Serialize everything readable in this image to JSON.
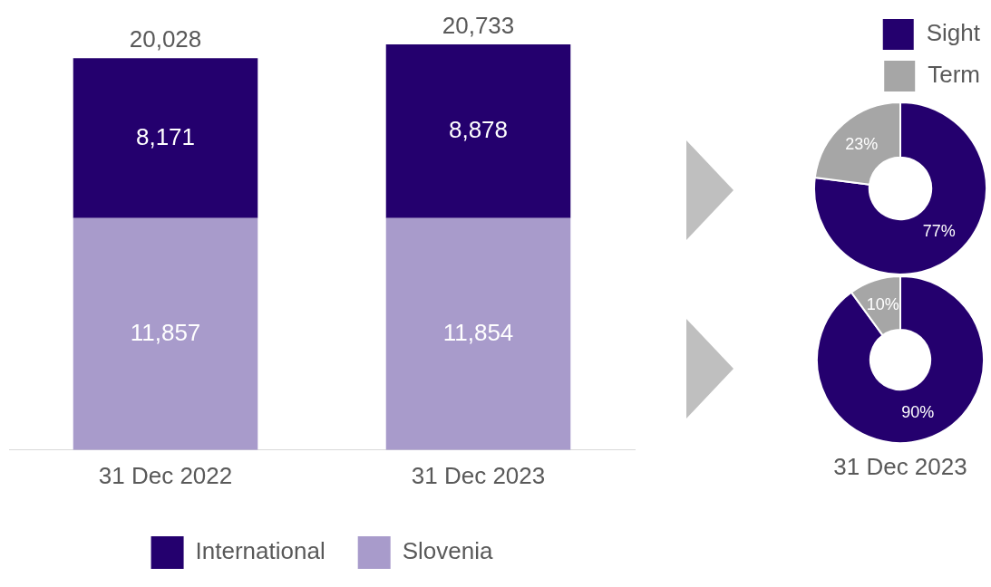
{
  "chart_data": [
    {
      "type": "bar",
      "categories": [
        "31 Dec 2022",
        "31 Dec 2023"
      ],
      "stacked": true,
      "totals": [
        "20,028",
        "20,733"
      ],
      "legend": "bottom",
      "grid": false,
      "tick_labels": "x",
      "series": [
        {
          "name": "Slovenia",
          "color": "#a89bcb",
          "values": [
            11857,
            11854
          ],
          "value_labels": [
            "11,857",
            "11,854"
          ]
        },
        {
          "name": "International",
          "color": "#24006e",
          "values": [
            8171,
            8878
          ],
          "value_labels": [
            "8,171",
            "8,878"
          ]
        }
      ]
    },
    {
      "type": "donut",
      "categories": [
        "Sight",
        "Term"
      ],
      "values": [
        77,
        23
      ],
      "colors": [
        "#24006e",
        "#a6a6a6"
      ],
      "value_labels": [
        "77%",
        "23%"
      ],
      "legend": "top right"
    },
    {
      "type": "donut",
      "categories": [
        null,
        null
      ],
      "values": [
        90,
        10
      ],
      "colors": [
        "#24006e",
        "#a6a6a6"
      ],
      "value_labels": [
        "90%",
        "10%"
      ],
      "legend": false,
      "annotations": [
        "31 Dec 2023"
      ]
    }
  ]
}
